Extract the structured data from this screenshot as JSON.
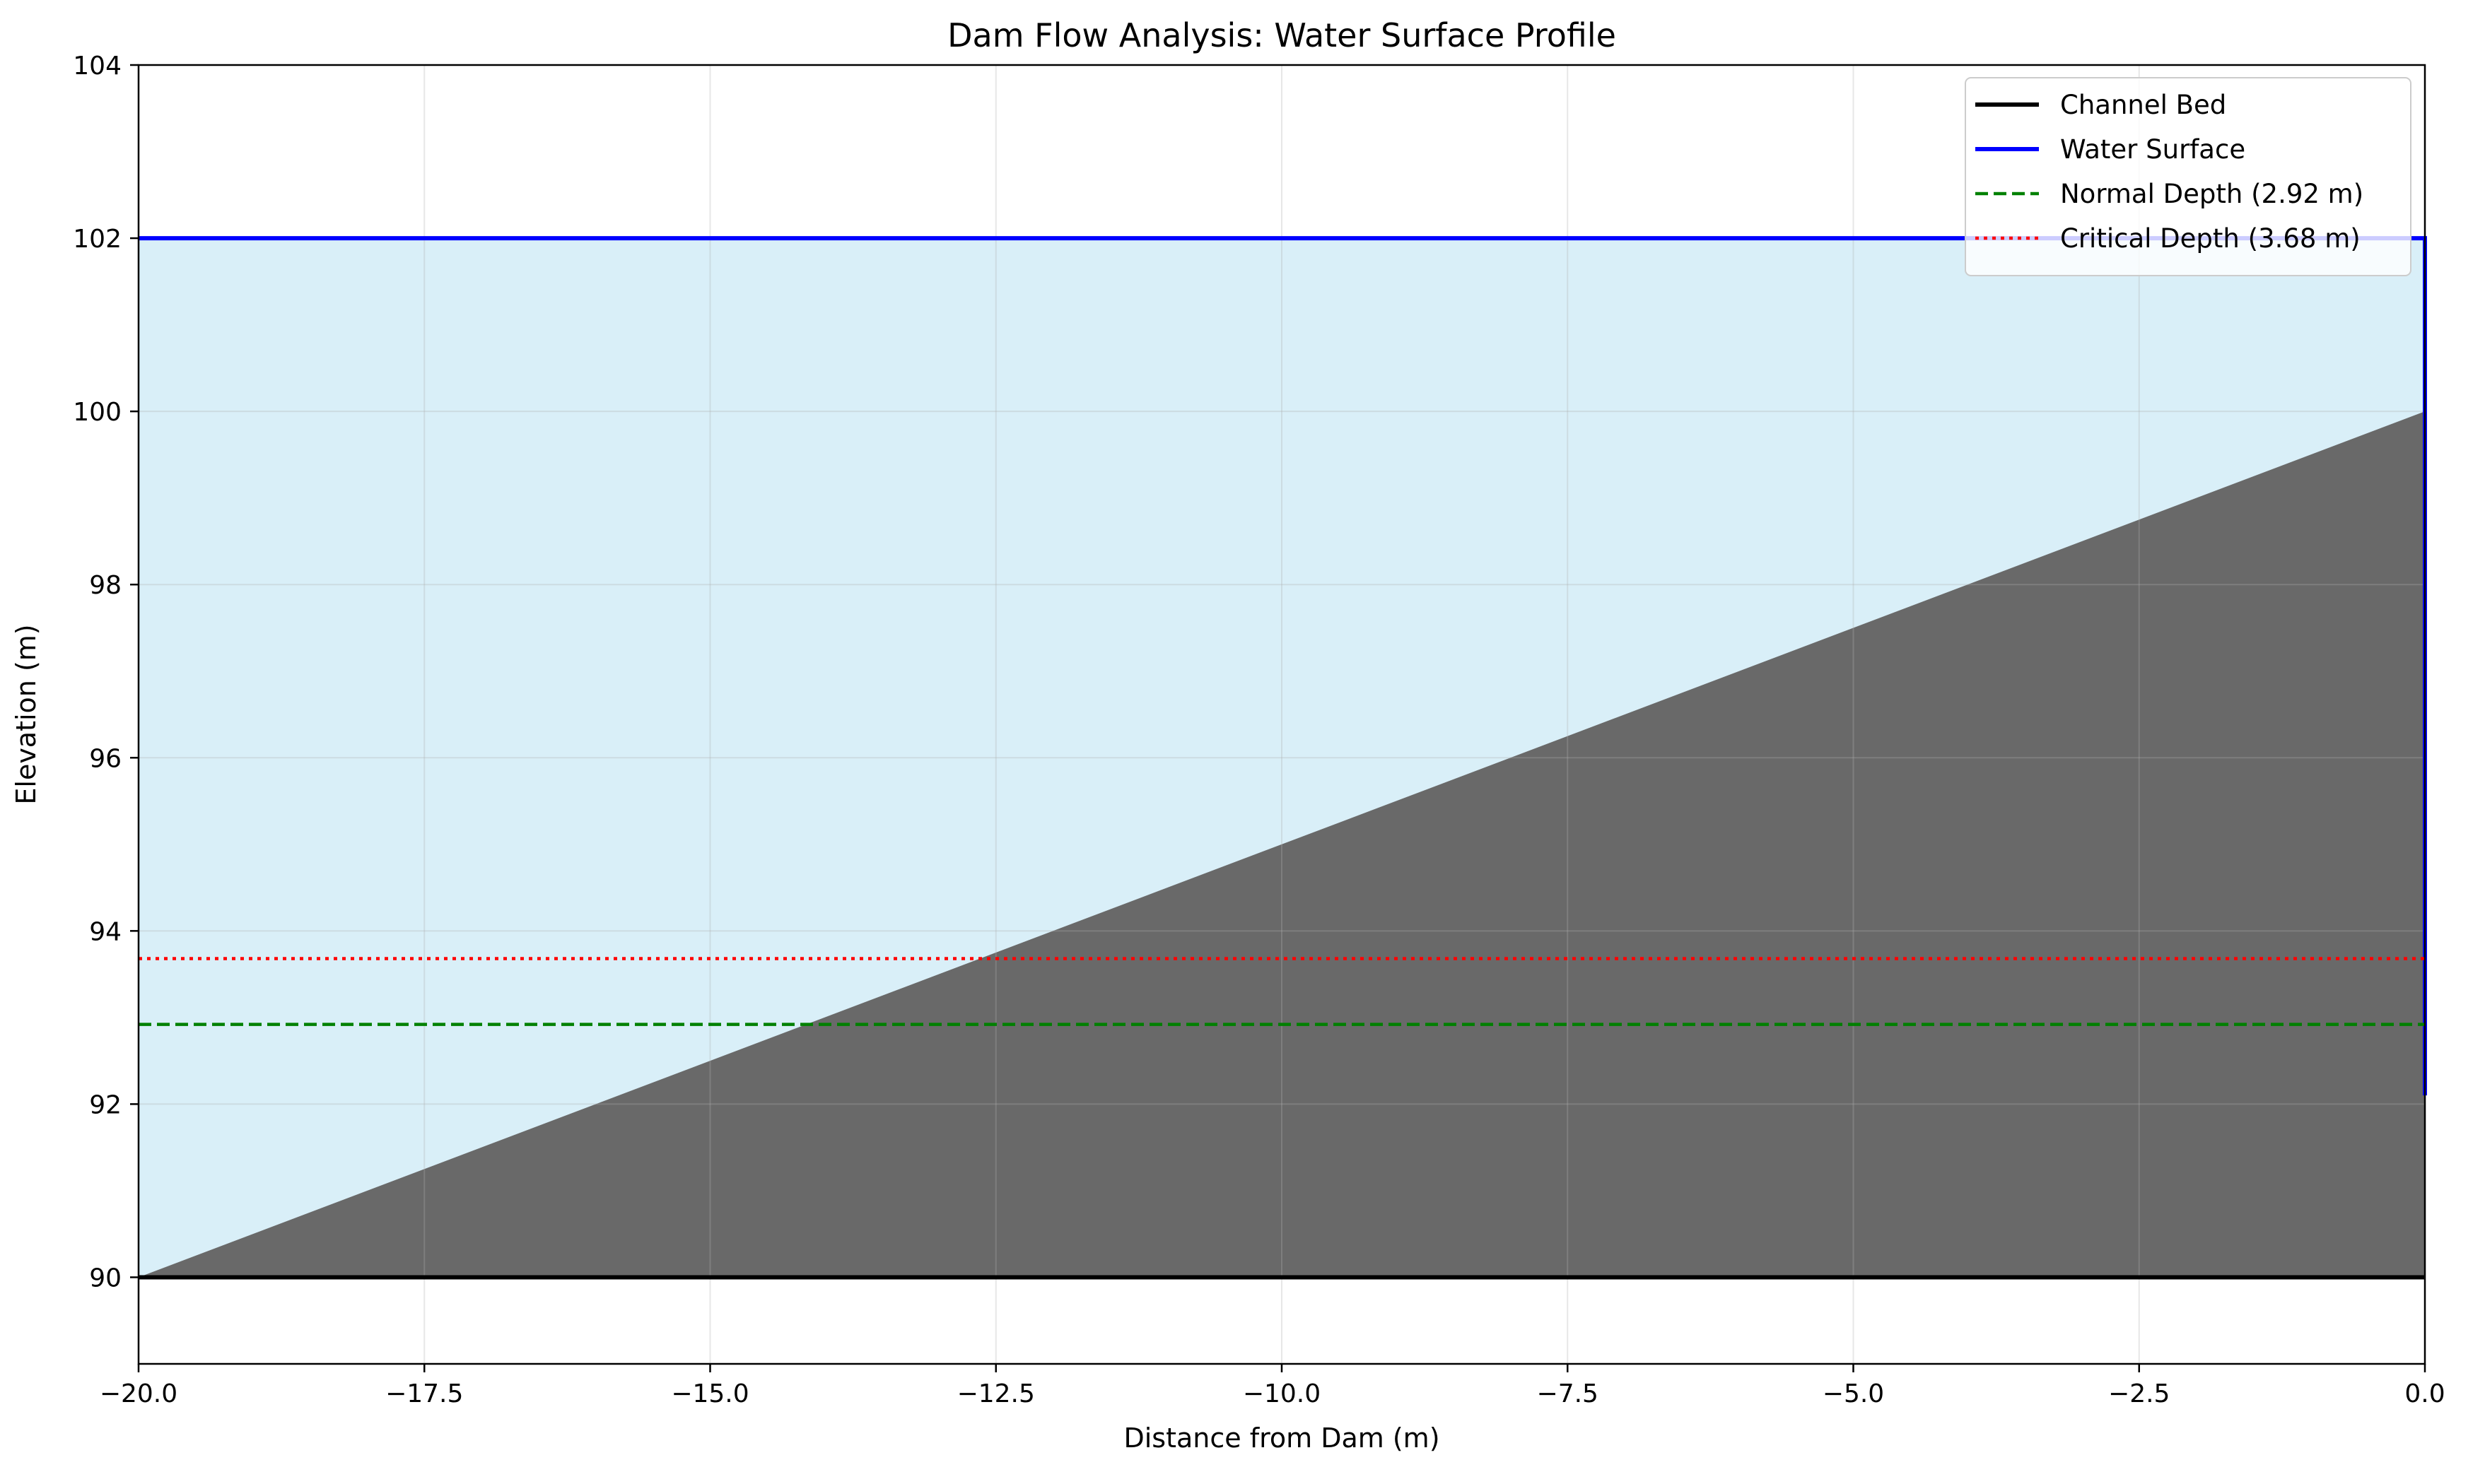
{
  "chart_data": {
    "type": "area",
    "title": "Dam Flow Analysis: Water Surface Profile",
    "xlabel": "Distance from Dam (m)",
    "ylabel": "Elevation (m)",
    "xlim": [
      -20,
      0
    ],
    "ylim": [
      89,
      104
    ],
    "grid": true,
    "legend_placement": "top-right",
    "x_ticks": [
      -20,
      -17.5,
      -15,
      -12.5,
      -10,
      -7.5,
      -5,
      -2.5,
      0
    ],
    "x_tick_labels": [
      "−20.0",
      "−17.5",
      "−15.0",
      "−12.5",
      "−10.0",
      "−7.5",
      "−5.0",
      "−2.5",
      "0.0"
    ],
    "y_ticks": [
      90,
      92,
      94,
      96,
      98,
      100,
      102,
      104
    ],
    "y_tick_labels": [
      "90",
      "92",
      "94",
      "96",
      "98",
      "100",
      "102",
      "104"
    ],
    "dam": {
      "crest_elevation": 100,
      "base_elevation": 90,
      "upstream_toe_x": -20,
      "face_x": 0,
      "color": "#696969"
    },
    "water_fill_color": "#d9eff8",
    "series": [
      {
        "name": "Channel Bed",
        "style": "solid",
        "color": "#000000",
        "x": [
          -20,
          0
        ],
        "y": [
          90,
          90
        ]
      },
      {
        "name": "Water Surface",
        "style": "solid",
        "color": "#0000ff",
        "x": [
          -20,
          0,
          0
        ],
        "y": [
          102,
          102,
          92.1
        ]
      },
      {
        "name": "Normal Depth (2.92 m)",
        "style": "dashed",
        "color": "#008000",
        "x": [
          -20,
          0
        ],
        "y": [
          92.92,
          92.92
        ]
      },
      {
        "name": "Critical Depth (3.68 m)",
        "style": "dotted",
        "color": "#ff0000",
        "x": [
          -20,
          0
        ],
        "y": [
          93.68,
          93.68
        ]
      }
    ]
  }
}
